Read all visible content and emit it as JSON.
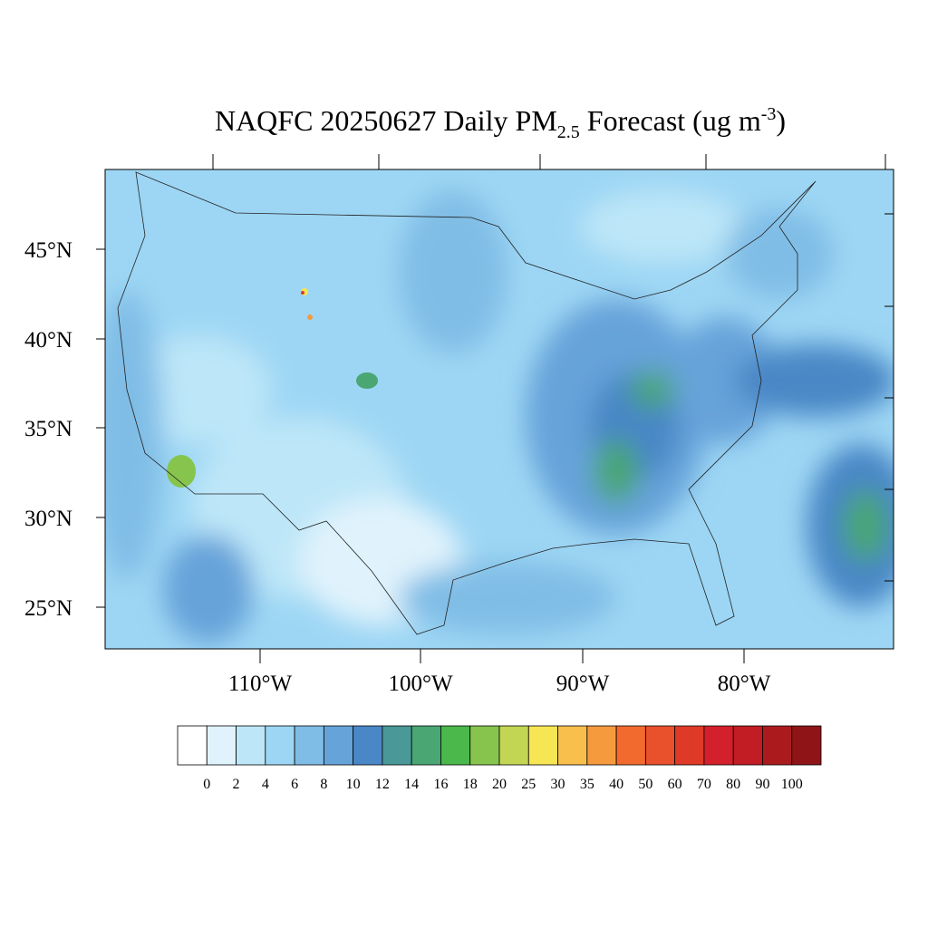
{
  "title": {
    "main": "NAQFC 20250627 Daily PM",
    "subscript": "2.5",
    "middle": " Forecast (ug m",
    "superscript": "-3",
    "end": ")"
  },
  "lat_labels": [
    "45°N",
    "40°N",
    "35°N",
    "30°N",
    "25°N"
  ],
  "lon_labels": [
    "110°W",
    "100°W",
    "90°W",
    "80°W"
  ],
  "colorbar": {
    "levels": [
      0,
      2,
      4,
      6,
      8,
      10,
      12,
      14,
      16,
      18,
      20,
      25,
      30,
      35,
      40,
      50,
      60,
      70,
      80,
      90,
      100
    ],
    "colors": [
      "#ffffff",
      "#e0f3fc",
      "#bde6f8",
      "#9dd6f4",
      "#80bde6",
      "#66a3d9",
      "#4a87c6",
      "#4a9898",
      "#4aa673",
      "#4ab84a",
      "#86c44e",
      "#c2d654",
      "#f7e654",
      "#f8bf4c",
      "#f69a3e",
      "#f26a2e",
      "#e9502c",
      "#df3a28",
      "#d4202c",
      "#c21c24",
      "#ab1b1e",
      "#8e1418"
    ]
  }
}
